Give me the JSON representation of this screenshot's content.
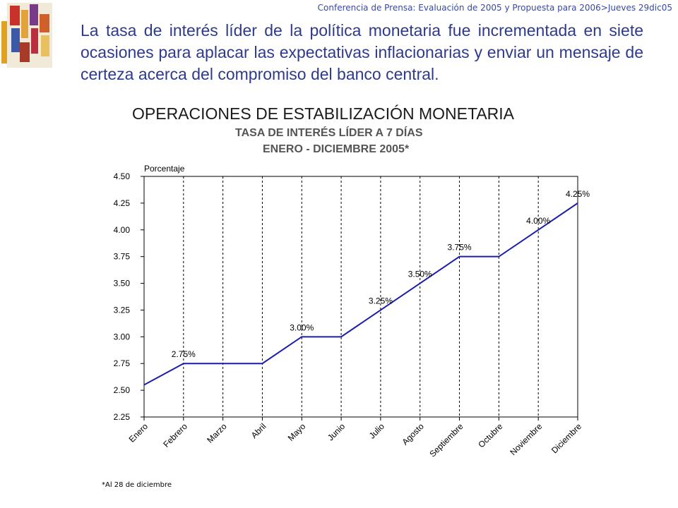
{
  "slide": {
    "header": "Conferencia de Prensa: Evaluación de 2005 y Propuesta para 2006>Jueves 29dic05",
    "body_text": "La tasa de interés líder de la política monetaria fue incrementada en siete ocasiones para aplacar las expectativas inflacionarias y enviar un mensaje de certeza acerca del compromiso del banco central.",
    "footnote": "*Al 28 de diciembre"
  },
  "chart_data": {
    "type": "line",
    "title": "OPERACIONES DE ESTABILIZACIÓN MONETARIA",
    "subtitle_1": "TASA DE INTERÉS LÍDER A 7 DÍAS",
    "subtitle_2": "ENERO  - DICIEMBRE 2005*",
    "ylabel": "Porcentaje",
    "xlabel": "",
    "ylim": [
      2.25,
      4.5
    ],
    "yticks": [
      "4.50",
      "4.25",
      "4.00",
      "3.75",
      "3.50",
      "3.25",
      "3.00",
      "2.75",
      "2.50",
      "2.25"
    ],
    "categories": [
      "Enero",
      "Febrero",
      "Marzo",
      "Abril",
      "Mayo",
      "Junio",
      "Julio",
      "Agosto",
      "Septiembre",
      "Octubre",
      "Noviembre",
      "Diciembre"
    ],
    "values": [
      2.55,
      2.75,
      2.75,
      2.75,
      3.0,
      3.0,
      3.25,
      3.5,
      3.75,
      3.75,
      4.0,
      4.25
    ],
    "data_labels": [
      {
        "index": 1,
        "text": "2.75%"
      },
      {
        "index": 4,
        "text": "3.00%"
      },
      {
        "index": 6,
        "text": "3.25%"
      },
      {
        "index": 7,
        "text": "3.50%"
      },
      {
        "index": 8,
        "text": "3.75%"
      },
      {
        "index": 10,
        "text": "4.00%"
      },
      {
        "index": 11,
        "text": "4.25%"
      }
    ],
    "grid": "vertical dashed",
    "line_color": "#1c1cb0"
  }
}
